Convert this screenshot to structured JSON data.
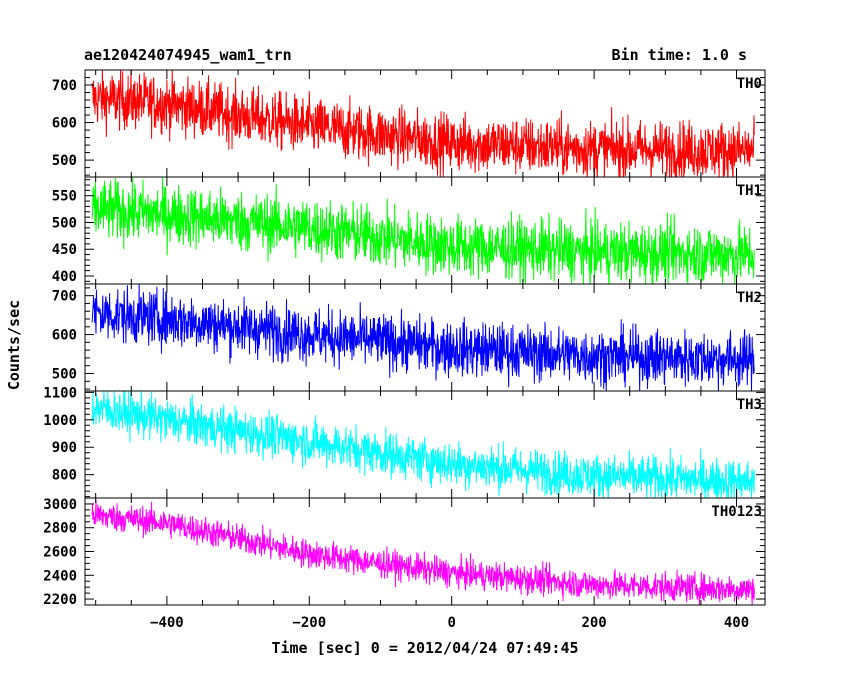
{
  "header": {
    "title": "ae120424074945_wam1_trn",
    "bin_time": "Bin time: 1.0 s"
  },
  "chart_data": {
    "type": "line",
    "xlabel": "Time [sec] 0 = 2012/04/24 07:49:45",
    "ylabel": "Counts/sec",
    "xlim": [
      -515,
      440
    ],
    "x_ticks": [
      -400,
      -200,
      0,
      200,
      400
    ],
    "x_minor_step": 50,
    "time_range": [
      -505,
      425
    ],
    "series": [
      {
        "name": "TH0",
        "color": "#ff0000",
        "ylim": [
          455,
          740
        ],
        "y_ticks": [
          500,
          600,
          700
        ],
        "y_minor_step": 20,
        "trend": [
          [
            -505,
            665
          ],
          [
            -400,
            650
          ],
          [
            -200,
            590
          ],
          [
            0,
            545
          ],
          [
            200,
            530
          ],
          [
            425,
            525
          ]
        ],
        "noise": 38
      },
      {
        "name": "TH1",
        "color": "#00ff00",
        "ylim": [
          385,
          585
        ],
        "y_ticks": [
          400,
          450,
          500,
          550
        ],
        "y_minor_step": 10,
        "trend": [
          [
            -505,
            525
          ],
          [
            -400,
            515
          ],
          [
            -200,
            490
          ],
          [
            0,
            455
          ],
          [
            200,
            445
          ],
          [
            425,
            440
          ]
        ],
        "noise": 28
      },
      {
        "name": "TH2",
        "color": "#0000ff",
        "ylim": [
          455,
          730
        ],
        "y_ticks": [
          500,
          600,
          700
        ],
        "y_minor_step": 20,
        "trend": [
          [
            -505,
            655
          ],
          [
            -400,
            640
          ],
          [
            -200,
            600
          ],
          [
            0,
            565
          ],
          [
            200,
            545
          ],
          [
            425,
            535
          ]
        ],
        "noise": 35
      },
      {
        "name": "TH3",
        "color": "#00ffff",
        "ylim": [
          715,
          1105
        ],
        "y_ticks": [
          800,
          900,
          1000,
          1100
        ],
        "y_minor_step": 20,
        "trend": [
          [
            -505,
            1045
          ],
          [
            -400,
            1000
          ],
          [
            -200,
            920
          ],
          [
            0,
            840
          ],
          [
            200,
            795
          ],
          [
            425,
            775
          ]
        ],
        "noise": 40
      },
      {
        "name": "TH0123",
        "color": "#ff00ff",
        "ylim": [
          2150,
          3050
        ],
        "y_ticks": [
          2200,
          2400,
          2600,
          2800,
          3000
        ],
        "y_minor_step": 50,
        "trend": [
          [
            -505,
            2910
          ],
          [
            -400,
            2840
          ],
          [
            -200,
            2580
          ],
          [
            0,
            2420
          ],
          [
            200,
            2320
          ],
          [
            425,
            2280
          ]
        ],
        "noise": 60
      }
    ]
  }
}
